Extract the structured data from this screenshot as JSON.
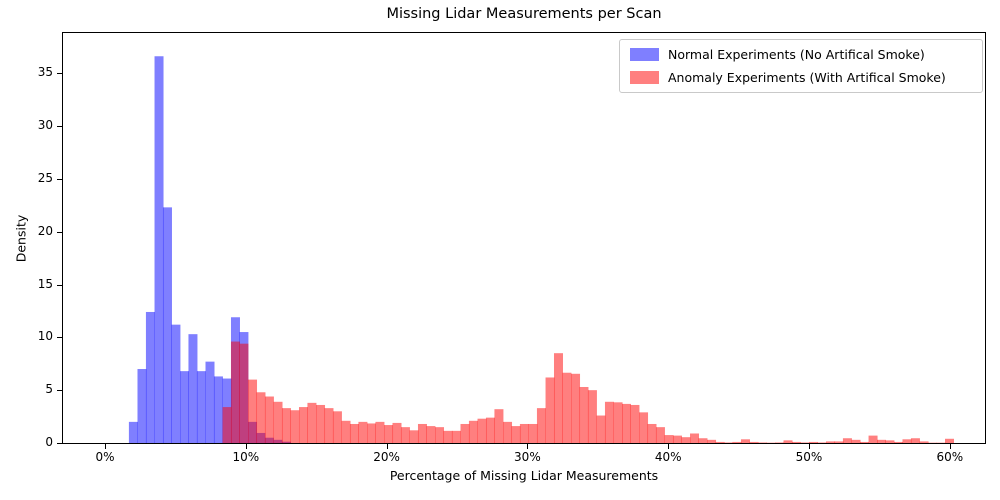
{
  "title": "Missing Lidar Measurements per Scan",
  "xlabel": "Percentage of Missing Lidar Measurements",
  "ylabel": "Density",
  "legend": {
    "items": [
      {
        "label": "Normal Experiments (No Artifical Smoke)",
        "color": "rgba(0,0,255,0.5)"
      },
      {
        "label": "Anomaly Experiments (With Artifical Smoke)",
        "color": "rgba(255,0,0,0.5)"
      }
    ]
  },
  "chart_data": {
    "type": "bar",
    "subtype": "overlapping-density-histogram",
    "title": "Missing Lidar Measurements per Scan",
    "xlabel": "Percentage of Missing Lidar Measurements",
    "ylabel": "Density",
    "grid": false,
    "legend_position": "upper right",
    "xlim": [
      -2.98,
      62.5
    ],
    "ylim": [
      0,
      38.8
    ],
    "bin_width_percent": 0.604,
    "xticks": [
      {
        "v": 0,
        "label": "0%"
      },
      {
        "v": 10,
        "label": "10%"
      },
      {
        "v": 20,
        "label": "20%"
      },
      {
        "v": 30,
        "label": "30%"
      },
      {
        "v": 40,
        "label": "40%"
      },
      {
        "v": 50,
        "label": "50%"
      },
      {
        "v": 60,
        "label": "60%"
      }
    ],
    "yticks": [
      {
        "v": 0,
        "label": "0"
      },
      {
        "v": 5,
        "label": "5"
      },
      {
        "v": 10,
        "label": "10"
      },
      {
        "v": 15,
        "label": "15"
      },
      {
        "v": 20,
        "label": "20"
      },
      {
        "v": 25,
        "label": "25"
      },
      {
        "v": 30,
        "label": "30"
      },
      {
        "v": 35,
        "label": "35"
      }
    ],
    "series": [
      {
        "name": "Normal Experiments (No Artifical Smoke)",
        "color": "rgba(0,0,255,0.5)",
        "bar_name": "normal-histogram-bar",
        "bins": [
          [
            1.7,
            2.0
          ],
          [
            2.31,
            7.0
          ],
          [
            2.91,
            12.4
          ],
          [
            3.52,
            36.6
          ],
          [
            4.12,
            22.3
          ],
          [
            4.72,
            11.2
          ],
          [
            5.33,
            6.8
          ],
          [
            5.93,
            10.3
          ],
          [
            6.53,
            6.8
          ],
          [
            7.14,
            7.7
          ],
          [
            7.74,
            6.3
          ],
          [
            8.35,
            6.1
          ],
          [
            8.95,
            11.9
          ],
          [
            9.55,
            10.5
          ],
          [
            10.16,
            2.0
          ],
          [
            10.76,
            0.95
          ],
          [
            11.36,
            0.5
          ],
          [
            11.97,
            0.3
          ],
          [
            12.57,
            0.12
          ]
        ]
      },
      {
        "name": "Anomaly Experiments (With Artifical Smoke)",
        "color": "rgba(255,0,0,0.5)",
        "bar_name": "anomaly-histogram-bar",
        "bins": [
          [
            8.35,
            3.4
          ],
          [
            8.95,
            9.6
          ],
          [
            9.55,
            9.4
          ],
          [
            10.16,
            6.0
          ],
          [
            10.76,
            4.8
          ],
          [
            11.36,
            4.4
          ],
          [
            11.97,
            3.9
          ],
          [
            12.57,
            3.3
          ],
          [
            13.17,
            3.1
          ],
          [
            13.78,
            3.4
          ],
          [
            14.38,
            3.8
          ],
          [
            14.99,
            3.6
          ],
          [
            15.59,
            3.3
          ],
          [
            16.19,
            3.0
          ],
          [
            16.8,
            2.1
          ],
          [
            17.4,
            1.8
          ],
          [
            18.0,
            2.0
          ],
          [
            18.61,
            1.85
          ],
          [
            19.21,
            2.0
          ],
          [
            19.82,
            1.7
          ],
          [
            20.42,
            1.9
          ],
          [
            21.02,
            1.5
          ],
          [
            21.63,
            1.2
          ],
          [
            22.23,
            1.8
          ],
          [
            22.83,
            1.6
          ],
          [
            23.44,
            1.5
          ],
          [
            24.04,
            1.15
          ],
          [
            24.64,
            1.15
          ],
          [
            25.25,
            1.8
          ],
          [
            25.85,
            2.1
          ],
          [
            26.46,
            2.3
          ],
          [
            27.06,
            2.4
          ],
          [
            27.66,
            3.2
          ],
          [
            28.27,
            2.0
          ],
          [
            28.87,
            1.6
          ],
          [
            29.47,
            1.8
          ],
          [
            30.08,
            1.8
          ],
          [
            30.68,
            3.3
          ],
          [
            31.29,
            6.2
          ],
          [
            31.89,
            8.5
          ],
          [
            32.49,
            6.65
          ],
          [
            33.1,
            6.55
          ],
          [
            33.7,
            5.3
          ],
          [
            34.3,
            5.0
          ],
          [
            34.91,
            2.6
          ],
          [
            35.51,
            3.9
          ],
          [
            36.12,
            3.85
          ],
          [
            36.72,
            3.7
          ],
          [
            37.32,
            3.6
          ],
          [
            37.93,
            2.9
          ],
          [
            38.53,
            1.8
          ],
          [
            39.13,
            1.5
          ],
          [
            39.74,
            0.75
          ],
          [
            40.34,
            0.7
          ],
          [
            40.94,
            0.55
          ],
          [
            41.55,
            0.9
          ],
          [
            42.15,
            0.45
          ],
          [
            42.76,
            0.3
          ],
          [
            43.36,
            0.1
          ],
          [
            43.96,
            0.05
          ],
          [
            44.57,
            0.1
          ],
          [
            45.17,
            0.35
          ],
          [
            45.77,
            0.1
          ],
          [
            46.38,
            0.05
          ],
          [
            46.98,
            0.03
          ],
          [
            47.59,
            0.05
          ],
          [
            48.19,
            0.25
          ],
          [
            48.79,
            0.1
          ],
          [
            49.4,
            0.05
          ],
          [
            50.0,
            0.1
          ],
          [
            50.6,
            0.05
          ],
          [
            51.21,
            0.15
          ],
          [
            51.81,
            0.15
          ],
          [
            52.41,
            0.45
          ],
          [
            53.02,
            0.3
          ],
          [
            53.62,
            0.1
          ],
          [
            54.23,
            0.7
          ],
          [
            54.83,
            0.3
          ],
          [
            55.43,
            0.25
          ],
          [
            56.04,
            0.1
          ],
          [
            56.64,
            0.35
          ],
          [
            57.24,
            0.45
          ],
          [
            57.85,
            0.15
          ],
          [
            58.45,
            0.03
          ],
          [
            59.06,
            0.03
          ],
          [
            59.66,
            0.4
          ]
        ]
      }
    ]
  }
}
